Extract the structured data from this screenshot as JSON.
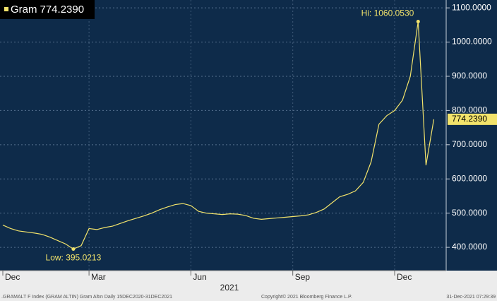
{
  "chart_data": {
    "type": "line",
    "title": "Gram",
    "last_value_label": "774.2390",
    "categories": [
      "Dec",
      null,
      null,
      null,
      null,
      null,
      null,
      null,
      null,
      null,
      null,
      "Mar",
      null,
      null,
      null,
      null,
      null,
      null,
      null,
      null,
      null,
      null,
      null,
      null,
      "Jun",
      null,
      null,
      null,
      null,
      null,
      null,
      null,
      null,
      null,
      null,
      null,
      null,
      "Sep",
      null,
      null,
      null,
      null,
      null,
      null,
      null,
      null,
      null,
      null,
      null,
      null,
      "Dec",
      null,
      null,
      null,
      null,
      null
    ],
    "series": [
      {
        "name": "Gram",
        "color": "#f2e36b",
        "values": [
          465,
          455,
          448,
          445,
          442,
          438,
          430,
          420,
          410,
          395.0213,
          405,
          455,
          452,
          458,
          462,
          470,
          478,
          485,
          492,
          500,
          510,
          518,
          525,
          528,
          522,
          505,
          500,
          498,
          496,
          498,
          497,
          493,
          485,
          482,
          484,
          486,
          488,
          490,
          492,
          495,
          502,
          512,
          530,
          548,
          555,
          565,
          590,
          650,
          760,
          785,
          800,
          830,
          900,
          1060.053,
          640,
          774.239
        ]
      }
    ],
    "ylim": [
      332,
      1123
    ],
    "yticks": [
      {
        "value": 400,
        "label": "400.0000"
      },
      {
        "value": 500,
        "label": "500.0000"
      },
      {
        "value": 600,
        "label": "600.0000"
      },
      {
        "value": 700,
        "label": "700.0000"
      },
      {
        "value": 800,
        "label": "800.0000"
      },
      {
        "value": 900,
        "label": "900.0000"
      },
      {
        "value": 1000,
        "label": "1000.0000"
      },
      {
        "value": 1100,
        "label": "1100.0000"
      }
    ],
    "grid": true,
    "xlabel": "2021",
    "annotations": [
      {
        "text": "Hi: 1060.0530",
        "index": 53
      },
      {
        "text": "Low: 395.0213",
        "index": 9
      }
    ],
    "footer": [
      ".GRAMALT F Index (GRAM ALTIN) Gram Altın  Daily 15DEC2020-31DEC2021",
      "Copyright© 2021 Bloomberg Finance L.P.",
      "31-Dec-2021 07:29:39"
    ]
  }
}
